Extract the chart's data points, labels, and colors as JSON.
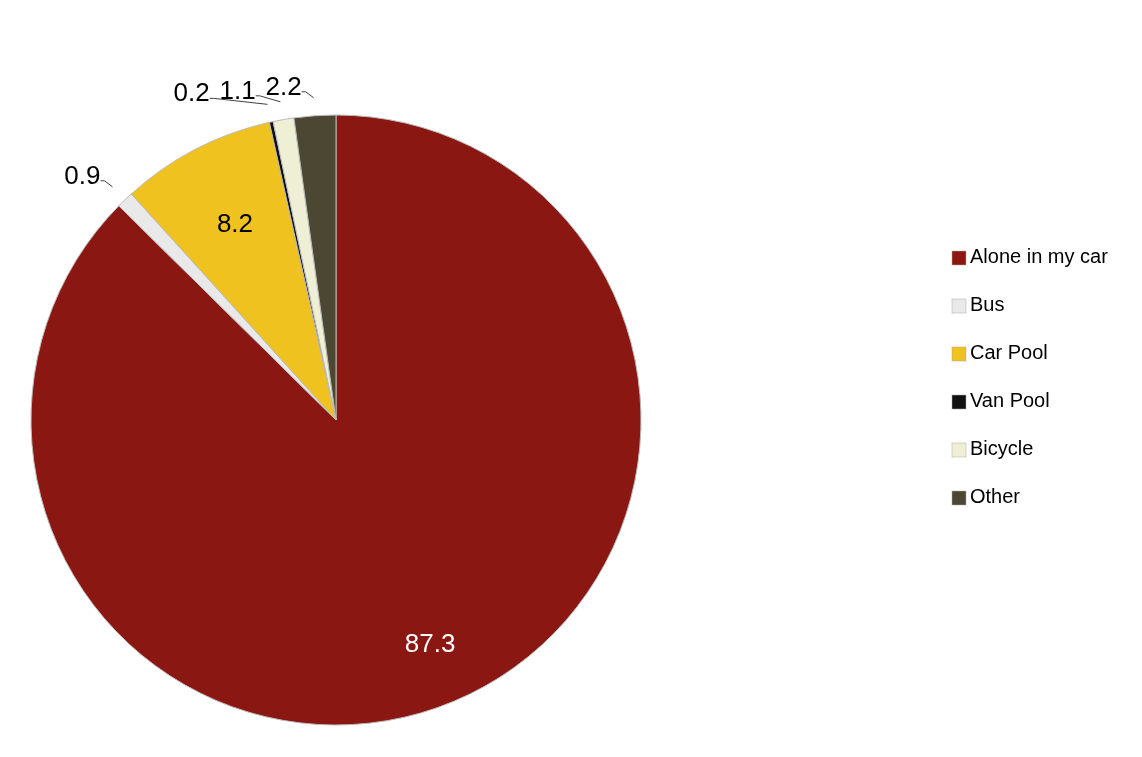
{
  "chart_data": {
    "type": "pie",
    "categories": [
      "Alone in my car",
      "Bus",
      "Car Pool",
      "Van Pool",
      "Bicycle",
      "Other"
    ],
    "values": [
      87.3,
      0.9,
      8.2,
      0.2,
      1.1,
      2.2
    ],
    "colors": [
      "#8b1712",
      "#e9e9e9",
      "#efc21f",
      "#111111",
      "#efefd6",
      "#4b4733"
    ],
    "data_labels": true,
    "legend": "right"
  }
}
